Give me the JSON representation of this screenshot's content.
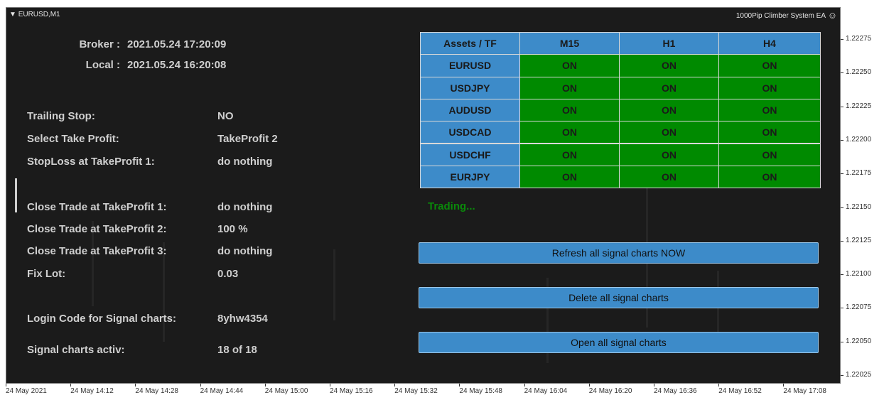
{
  "window": {
    "symbol": "EURUSD,M1",
    "expert": "1000Pip Climber System EA"
  },
  "clock": [
    {
      "label": "Broker :",
      "value": "2021.05.24 17:20:09"
    },
    {
      "label": "Local :",
      "value": "2021.05.24 16:20:08"
    }
  ],
  "settings": [
    {
      "label": "Trailing Stop:",
      "value": "NO"
    },
    {
      "label": "Select Take Profit:",
      "value": "TakeProfit 2"
    },
    {
      "label": "StopLoss at TakeProfit 1:",
      "value": "do nothing"
    },
    {
      "label": "Close Trade at TakeProfit 1:",
      "value": "do nothing"
    },
    {
      "label": "Close Trade at TakeProfit 2:",
      "value": "100 %"
    },
    {
      "label": "Close Trade at TakeProfit 3:",
      "value": "do nothing"
    },
    {
      "label": "Fix Lot:",
      "value": "0.03"
    },
    {
      "label": "Login Code for Signal charts:",
      "value": "8yhw4354"
    },
    {
      "label": "Signal charts activ:",
      "value": "18 of 18"
    }
  ],
  "table": {
    "header": [
      "Assets / TF",
      "M15",
      "H1",
      "H4"
    ],
    "rows": [
      [
        "EURUSD",
        "ON",
        "ON",
        "ON"
      ],
      [
        "USDJPY",
        "ON",
        "ON",
        "ON"
      ],
      [
        "AUDUSD",
        "ON",
        "ON",
        "ON"
      ],
      [
        "USDCAD",
        "ON",
        "ON",
        "ON"
      ],
      [
        "USDCHF",
        "ON",
        "ON",
        "ON"
      ],
      [
        "EURJPY",
        "ON",
        "ON",
        "ON"
      ]
    ]
  },
  "status": "Trading...",
  "buttons": [
    "Refresh all signal charts  NOW",
    "Delete all signal charts",
    "Open all signal charts"
  ],
  "price_axis": [
    "1.22275",
    "1.22250",
    "1.22225",
    "1.22200",
    "1.22175",
    "1.22150",
    "1.22125",
    "1.22100",
    "1.22075",
    "1.22050",
    "1.22025"
  ],
  "time_axis": [
    "24 May 2021",
    "24 May 14:12",
    "24 May 14:28",
    "24 May 14:44",
    "24 May 15:00",
    "24 May 15:16",
    "24 May 15:32",
    "24 May 15:48",
    "24 May 16:04",
    "24 May 16:20",
    "24 May 16:36",
    "24 May 16:52",
    "24 May 17:08"
  ]
}
